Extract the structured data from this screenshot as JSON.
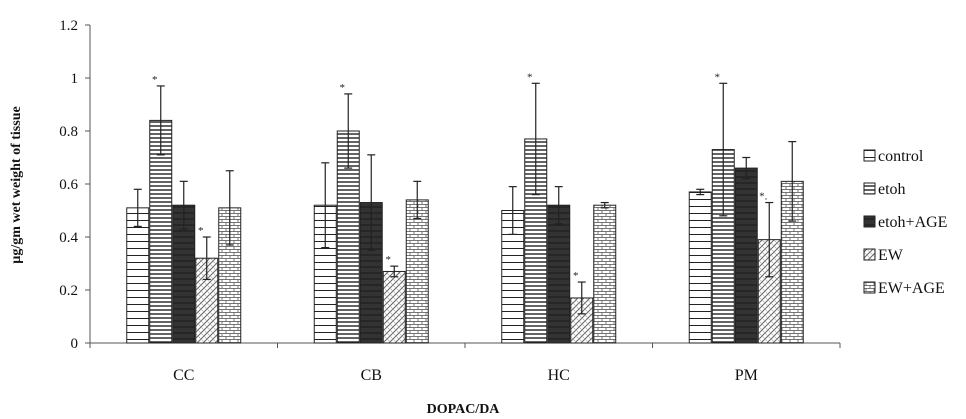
{
  "chart_data": {
    "type": "bar",
    "title": "",
    "xlabel": "DOPAC/DA",
    "ylabel": "µg/gm wet weight of tissue",
    "ylim": [
      0,
      1.2
    ],
    "yticks": [
      "0",
      "0.2",
      "0.4",
      "0.6",
      "0.8",
      "1",
      "1.2"
    ],
    "categories": [
      "CC",
      "CB",
      "HC",
      "PM"
    ],
    "legend_position": "right",
    "grid": false,
    "series": [
      {
        "name": "control",
        "pattern": "hlines-wide",
        "values": [
          0.51,
          0.52,
          0.5,
          0.57
        ],
        "errors": [
          0.07,
          0.16,
          0.09,
          0.01
        ],
        "significance": [
          "",
          "",
          "",
          ""
        ]
      },
      {
        "name": "etoh",
        "pattern": "hlines-dense",
        "values": [
          0.84,
          0.8,
          0.77,
          0.73
        ],
        "errors": [
          0.13,
          0.14,
          0.21,
          0.25
        ],
        "significance": [
          "*",
          "*",
          "*",
          "*"
        ]
      },
      {
        "name": "etoh+AGE",
        "pattern": "dark",
        "values": [
          0.52,
          0.53,
          0.52,
          0.66
        ],
        "errors": [
          0.09,
          0.18,
          0.07,
          0.04
        ],
        "significance": [
          "",
          "",
          "",
          ""
        ]
      },
      {
        "name": "EW",
        "pattern": "zigzag",
        "values": [
          0.32,
          0.27,
          0.17,
          0.39
        ],
        "errors": [
          0.08,
          0.02,
          0.06,
          0.14
        ],
        "significance": [
          "*",
          "*",
          "*",
          "*."
        ]
      },
      {
        "name": "EW+AGE",
        "pattern": "brick",
        "values": [
          0.51,
          0.54,
          0.52,
          0.61
        ],
        "errors": [
          0.14,
          0.07,
          0.01,
          0.15
        ],
        "significance": [
          "",
          "",
          "",
          ""
        ]
      }
    ]
  }
}
